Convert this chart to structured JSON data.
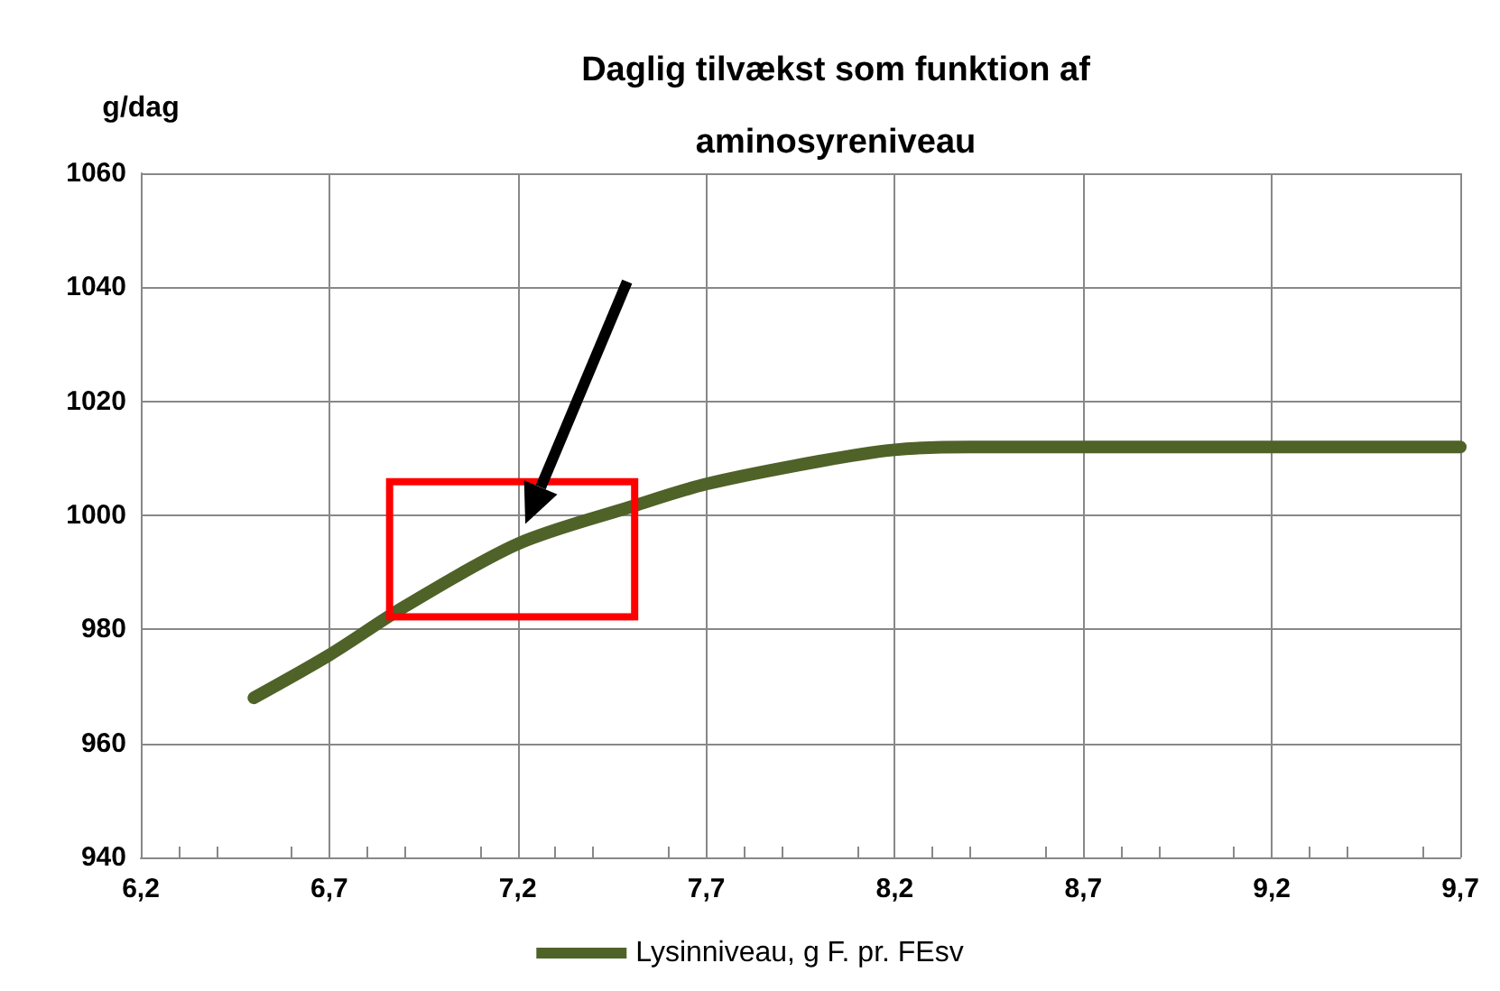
{
  "chart_data": {
    "type": "line",
    "title": "Daglig tilvækst som funktion af\naminosyreniveau",
    "ylabel": "g/dag",
    "x": [
      6.5,
      6.7,
      6.9,
      7.2,
      7.5,
      7.7,
      8.0,
      8.2,
      8.4,
      8.7,
      9.2,
      9.7
    ],
    "series": [
      {
        "name": "Lysinniveau, g F. pr. FEsv",
        "color": "#4f6228",
        "values": [
          968,
          975.5,
          984,
          995,
          1001.5,
          1005.5,
          1009.5,
          1011.5,
          1012,
          1012,
          1012,
          1012
        ]
      }
    ],
    "xlim": [
      6.2,
      9.7
    ],
    "xticks": [
      {
        "value": 6.2,
        "label": "6,2"
      },
      {
        "value": 6.7,
        "label": "6,7"
      },
      {
        "value": 7.2,
        "label": "7,2"
      },
      {
        "value": 7.7,
        "label": "7,7"
      },
      {
        "value": 8.2,
        "label": "8,2"
      },
      {
        "value": 8.7,
        "label": "8,7"
      },
      {
        "value": 9.2,
        "label": "9,2"
      },
      {
        "value": 9.7,
        "label": "9,7"
      }
    ],
    "ylim": [
      940,
      1060
    ],
    "yticks": [
      940,
      960,
      980,
      1000,
      1020,
      1040,
      1060
    ],
    "grid": true,
    "legend": "bottom",
    "line_style": "solid"
  }
}
